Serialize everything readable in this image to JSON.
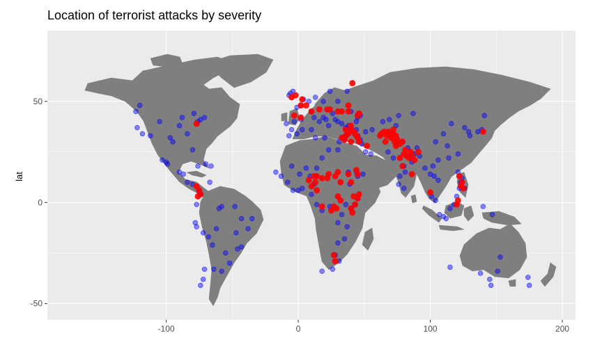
{
  "chart_data": {
    "type": "scatter",
    "title": "Location of terrorist attacks by severity",
    "xlabel": "",
    "ylabel": "lat",
    "xlim": [
      -190,
      210
    ],
    "ylim": [
      -58,
      85
    ],
    "x_ticks": [
      -100,
      0,
      100,
      200
    ],
    "y_ticks": [
      -50,
      0,
      50
    ],
    "grid": true,
    "legend": "none",
    "colors": {
      "land": "#7f7f7f",
      "panel": "#ebebeb",
      "grid": "#ffffff",
      "low_severity": "#0000ff",
      "high_severity": "#ff0000"
    },
    "series": [
      {
        "color": "#0000ff",
        "points": [
          [
            -120,
            48
          ],
          [
            -122,
            37
          ],
          [
            -118,
            34
          ],
          [
            -112,
            33
          ],
          [
            -105,
            40
          ],
          [
            -97,
            32
          ],
          [
            -95,
            30
          ],
          [
            -90,
            38
          ],
          [
            -88,
            42
          ],
          [
            -84,
            34
          ],
          [
            -80,
            26
          ],
          [
            -76,
            40
          ],
          [
            -74,
            41
          ],
          [
            -71,
            42
          ],
          [
            -79,
            44
          ],
          [
            -123,
            45
          ],
          [
            -100,
            20
          ],
          [
            -99,
            19
          ],
          [
            -103,
            21
          ],
          [
            -90,
            15
          ],
          [
            -87,
            14
          ],
          [
            -84,
            10
          ],
          [
            -80,
            9
          ],
          [
            -76,
            18
          ],
          [
            -70,
            19
          ],
          [
            -66,
            18
          ],
          [
            -75,
            5
          ],
          [
            -74,
            4
          ],
          [
            -77,
            -1
          ],
          [
            -78,
            -10
          ],
          [
            -77,
            -12
          ],
          [
            -72,
            -15
          ],
          [
            -68,
            -17
          ],
          [
            -65,
            -21
          ],
          [
            -58,
            -34
          ],
          [
            -64,
            -33
          ],
          [
            -71,
            -33
          ],
          [
            -72,
            -38
          ],
          [
            -74,
            -41
          ],
          [
            -47,
            -15
          ],
          [
            -43,
            -22
          ],
          [
            -46,
            -23
          ],
          [
            -52,
            -30
          ],
          [
            -48,
            -2
          ],
          [
            -60,
            -3
          ],
          [
            -67,
            10
          ],
          [
            -5,
            36
          ],
          [
            -3,
            40
          ],
          [
            2,
            41
          ],
          [
            -9,
            39
          ],
          [
            -1,
            47
          ],
          [
            2,
            48
          ],
          [
            -4,
            55
          ],
          [
            -7,
            53
          ],
          [
            -6,
            54
          ],
          [
            4,
            51
          ],
          [
            8,
            50
          ],
          [
            13,
            52
          ],
          [
            10,
            45
          ],
          [
            12,
            42
          ],
          [
            16,
            40
          ],
          [
            19,
            42
          ],
          [
            21,
            41
          ],
          [
            23,
            38
          ],
          [
            26,
            44
          ],
          [
            28,
            41
          ],
          [
            30,
            40
          ],
          [
            33,
            39
          ],
          [
            36,
            37
          ],
          [
            38,
            38
          ],
          [
            37,
            55
          ],
          [
            30,
            50
          ],
          [
            24,
            55
          ],
          [
            19,
            50
          ],
          [
            44,
            40
          ],
          [
            45,
            42
          ],
          [
            47,
            43
          ],
          [
            40,
            45
          ],
          [
            34,
            32
          ],
          [
            35,
            31
          ],
          [
            36,
            33
          ],
          [
            43,
            34
          ],
          [
            45,
            33
          ],
          [
            44,
            36
          ],
          [
            47,
            31
          ],
          [
            51,
            35
          ],
          [
            56,
            36
          ],
          [
            48,
            29
          ],
          [
            51,
            25
          ],
          [
            55,
            24
          ],
          [
            44,
            15
          ],
          [
            45,
            13
          ],
          [
            49,
            14
          ],
          [
            38,
            15
          ],
          [
            39,
            9
          ],
          [
            45,
            2
          ],
          [
            43,
            -1
          ],
          [
            40,
            -3
          ],
          [
            36,
            -1
          ],
          [
            33,
            -6
          ],
          [
            37,
            -12
          ],
          [
            35,
            -18
          ],
          [
            30,
            -20
          ],
          [
            28,
            -26
          ],
          [
            31,
            -29
          ],
          [
            18,
            -34
          ],
          [
            26,
            -33
          ],
          [
            30,
            -10
          ],
          [
            24,
            -2
          ],
          [
            18,
            -4
          ],
          [
            14,
            -1
          ],
          [
            10,
            4
          ],
          [
            12,
            9
          ],
          [
            9,
            13
          ],
          [
            3,
            7
          ],
          [
            0,
            6
          ],
          [
            -4,
            6
          ],
          [
            -8,
            10
          ],
          [
            -13,
            13
          ],
          [
            -17,
            15
          ],
          [
            -5,
            18
          ],
          [
            1,
            14
          ],
          [
            6,
            17
          ],
          [
            14,
            17
          ],
          [
            18,
            22
          ],
          [
            23,
            26
          ],
          [
            30,
            26
          ],
          [
            31,
            30
          ],
          [
            10,
            36
          ],
          [
            3,
            36
          ],
          [
            -7,
            33
          ],
          [
            -1,
            34
          ],
          [
            13,
            32
          ],
          [
            20,
            32
          ],
          [
            64,
            40
          ],
          [
            69,
            41
          ],
          [
            71,
            34
          ],
          [
            74,
            38
          ],
          [
            79,
            30
          ],
          [
            83,
            27
          ],
          [
            88,
            24
          ],
          [
            86,
            20
          ],
          [
            80,
            18
          ],
          [
            77,
            13
          ],
          [
            76,
            9
          ],
          [
            80,
            7
          ],
          [
            81,
            15
          ],
          [
            72,
            22
          ],
          [
            68,
            25
          ],
          [
            90,
            27
          ],
          [
            92,
            23
          ],
          [
            96,
            17
          ],
          [
            100,
            14
          ],
          [
            102,
            18
          ],
          [
            106,
            21
          ],
          [
            106,
            11
          ],
          [
            103,
            13
          ],
          [
            101,
            3
          ],
          [
            104,
            1
          ],
          [
            107,
            -6
          ],
          [
            110,
            -7
          ],
          [
            112,
            -8
          ],
          [
            115,
            -3
          ],
          [
            118,
            -1
          ],
          [
            120,
            3
          ],
          [
            122,
            7
          ],
          [
            123,
            10
          ],
          [
            124,
            12
          ],
          [
            126,
            7
          ],
          [
            121,
            15
          ],
          [
            121,
            24
          ],
          [
            114,
            22
          ],
          [
            116,
            39
          ],
          [
            113,
            28
          ],
          [
            110,
            34
          ],
          [
            104,
            30
          ],
          [
            87,
            44
          ],
          [
            76,
            43
          ],
          [
            126,
            37
          ],
          [
            129,
            35
          ],
          [
            136,
            35
          ],
          [
            139,
            36
          ],
          [
            141,
            43
          ],
          [
            130,
            33
          ],
          [
            140,
            -2
          ],
          [
            147,
            -6
          ],
          [
            115,
            -32
          ],
          [
            138,
            -35
          ],
          [
            145,
            -38
          ],
          [
            151,
            -34
          ],
          [
            153,
            -27
          ],
          [
            146,
            -41
          ],
          [
            174,
            -37
          ],
          [
            175,
            -41
          ],
          [
            -43,
            -8
          ],
          [
            -35,
            -8
          ],
          [
            -38,
            -13
          ],
          [
            -58,
            -2
          ],
          [
            -62,
            -13
          ],
          [
            -55,
            -25
          ]
        ]
      },
      {
        "color": "#ff0000",
        "points": [
          [
            -77,
            39
          ],
          [
            -74,
            4
          ],
          [
            -75,
            6
          ],
          [
            -77,
            8
          ],
          [
            -76,
            3
          ],
          [
            -2,
            53
          ],
          [
            -5,
            52
          ],
          [
            3,
            51
          ],
          [
            2,
            48
          ],
          [
            6,
            48
          ],
          [
            -3,
            43
          ],
          [
            2,
            42
          ],
          [
            10,
            45
          ],
          [
            16,
            46
          ],
          [
            22,
            46
          ],
          [
            24,
            46
          ],
          [
            30,
            45
          ],
          [
            33,
            45
          ],
          [
            38,
            48
          ],
          [
            38,
            45
          ],
          [
            46,
            44
          ],
          [
            45,
            43
          ],
          [
            33,
            32
          ],
          [
            35,
            31
          ],
          [
            36,
            33
          ],
          [
            36,
            36
          ],
          [
            38,
            34
          ],
          [
            40,
            36
          ],
          [
            42,
            35
          ],
          [
            43,
            34
          ],
          [
            44,
            33
          ],
          [
            45,
            32
          ],
          [
            46,
            30
          ],
          [
            40,
            38
          ],
          [
            41,
            59
          ],
          [
            52,
            28
          ],
          [
            40,
            30
          ],
          [
            44,
            16
          ],
          [
            45,
            14
          ],
          [
            38,
            14
          ],
          [
            40,
            10
          ],
          [
            45,
            2
          ],
          [
            43,
            -1
          ],
          [
            40,
            -3
          ],
          [
            41,
            -5
          ],
          [
            42,
            3
          ],
          [
            46,
            4
          ],
          [
            30,
            3
          ],
          [
            29,
            -3
          ],
          [
            32,
            1
          ],
          [
            27,
            -2
          ],
          [
            25,
            -4
          ],
          [
            18,
            -2
          ],
          [
            13,
            10
          ],
          [
            10,
            8
          ],
          [
            8,
            11
          ],
          [
            12,
            13
          ],
          [
            14,
            6
          ],
          [
            14,
            13
          ],
          [
            18,
            12
          ],
          [
            22,
            12
          ],
          [
            23,
            14
          ],
          [
            28,
            13
          ],
          [
            30,
            15
          ],
          [
            32,
            10
          ],
          [
            27,
            -26
          ],
          [
            28,
            -29
          ],
          [
            62,
            33
          ],
          [
            63,
            34
          ],
          [
            65,
            35
          ],
          [
            66,
            30
          ],
          [
            67,
            33
          ],
          [
            68,
            35
          ],
          [
            69,
            34
          ],
          [
            70,
            32
          ],
          [
            71,
            33
          ],
          [
            72,
            34
          ],
          [
            72,
            36
          ],
          [
            73,
            30
          ],
          [
            74,
            28
          ],
          [
            74,
            33
          ],
          [
            75,
            31
          ],
          [
            77,
            29
          ],
          [
            79,
            30
          ],
          [
            81,
            26
          ],
          [
            82,
            23
          ],
          [
            84,
            22
          ],
          [
            85,
            25
          ],
          [
            86,
            23
          ],
          [
            88,
            21
          ],
          [
            91,
            25
          ],
          [
            80,
            24
          ],
          [
            77,
            22
          ],
          [
            79,
            18
          ],
          [
            86,
            14
          ],
          [
            100,
            5
          ],
          [
            123,
            8
          ],
          [
            124,
            10
          ],
          [
            122,
            13
          ],
          [
            125,
            7
          ],
          [
            121,
            1
          ],
          [
            120,
            -1
          ],
          [
            140,
            35
          ]
        ]
      }
    ]
  }
}
